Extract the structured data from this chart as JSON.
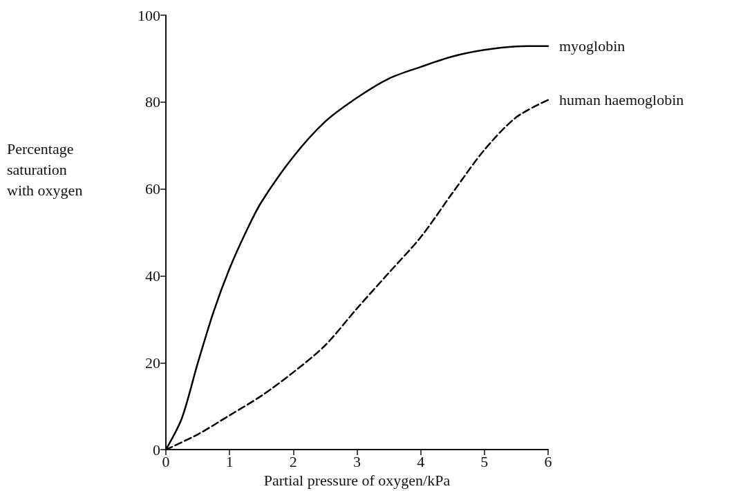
{
  "chart_data": {
    "type": "line",
    "xlabel": "Partial pressure of oxygen/kPa",
    "ylabel": "Percentage saturation with oxygen",
    "xlim": [
      0,
      6
    ],
    "xticks": [
      0,
      1,
      2,
      3,
      4,
      5,
      6
    ],
    "ylim": [
      0,
      100
    ],
    "yticks": [
      0,
      20,
      40,
      60,
      80,
      100
    ],
    "grid": false,
    "legend": false,
    "marker": "none",
    "series": [
      {
        "name": "myoglobin",
        "color": "#000000",
        "line_style": "solid",
        "x": [
          0,
          0.25,
          0.5,
          0.75,
          1,
          1.25,
          1.5,
          2,
          2.5,
          3,
          3.5,
          4,
          4.5,
          5,
          5.5,
          6
        ],
        "values": [
          0,
          7.2,
          19.9,
          31.8,
          41.7,
          49.9,
          57,
          67.4,
          75.5,
          81,
          85.4,
          88.1,
          90.5,
          92,
          92.8,
          92.9
        ]
      },
      {
        "name": "human haemoglobin",
        "color": "#000000",
        "line_style": "dashed",
        "x": [
          0,
          0.5,
          1,
          1.5,
          2,
          2.5,
          3,
          3.5,
          4,
          4.5,
          5,
          5.5,
          6
        ],
        "values": [
          0,
          3.5,
          7.9,
          12.4,
          17.8,
          24,
          32.5,
          40.7,
          48.9,
          59.1,
          69,
          76.5,
          80.5
        ]
      }
    ]
  }
}
